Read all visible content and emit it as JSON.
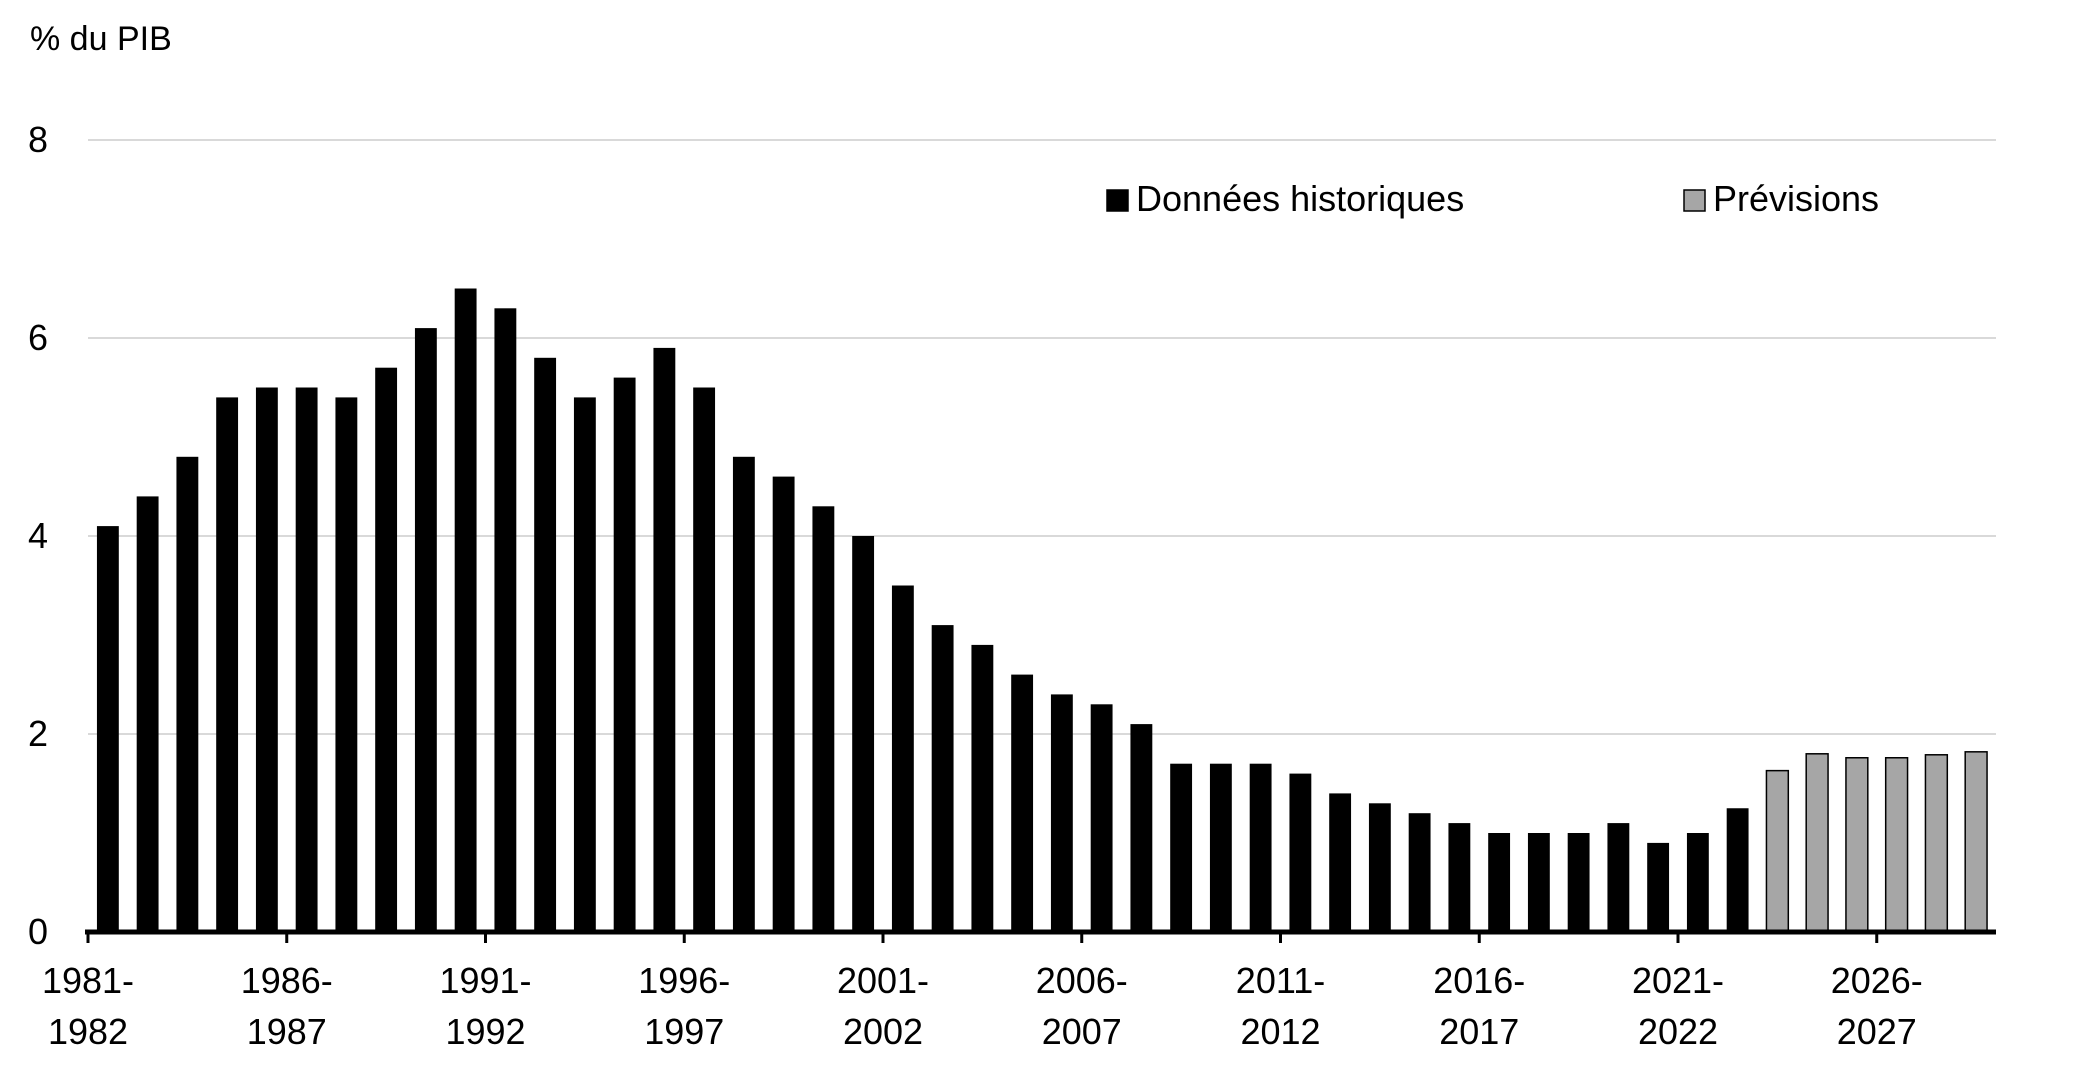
{
  "chart_data": {
    "type": "bar",
    "ylabel": "% du PIB",
    "ylim": [
      0,
      8
    ],
    "yticks": [
      "0",
      "2",
      "4",
      "6",
      "8"
    ],
    "grid": true,
    "legend_position": "top-right",
    "colors": {
      "historical": "#000000",
      "forecast": "#a6a6a6",
      "grid": "#d9d9d9"
    },
    "categories": [
      "1981-1982",
      "1982-1983",
      "1983-1984",
      "1984-1985",
      "1985-1986",
      "1986-1987",
      "1987-1988",
      "1988-1989",
      "1989-1990",
      "1990-1991",
      "1991-1992",
      "1992-1993",
      "1993-1994",
      "1994-1995",
      "1995-1996",
      "1996-1997",
      "1997-1998",
      "1998-1999",
      "1999-2000",
      "2000-2001",
      "2001-2002",
      "2002-2003",
      "2003-2004",
      "2004-2005",
      "2005-2006",
      "2006-2007",
      "2007-2008",
      "2008-2009",
      "2009-2010",
      "2010-2011",
      "2011-2012",
      "2012-2013",
      "2013-2014",
      "2014-2015",
      "2015-2016",
      "2016-2017",
      "2017-2018",
      "2018-2019",
      "2019-2020",
      "2020-2021",
      "2021-2022",
      "2022-2023",
      "2023-2024",
      "2024-2025",
      "2025-2026",
      "2026-2027",
      "2027-2028",
      "2028-2029"
    ],
    "x_tick_labels": [
      {
        "index": 0,
        "line1": "1981-",
        "line2": "1982"
      },
      {
        "index": 5,
        "line1": "1986-",
        "line2": "1987"
      },
      {
        "index": 10,
        "line1": "1991-",
        "line2": "1992"
      },
      {
        "index": 15,
        "line1": "1996-",
        "line2": "1997"
      },
      {
        "index": 20,
        "line1": "2001-",
        "line2": "2002"
      },
      {
        "index": 25,
        "line1": "2006-",
        "line2": "2007"
      },
      {
        "index": 30,
        "line1": "2011-",
        "line2": "2012"
      },
      {
        "index": 35,
        "line1": "2016-",
        "line2": "2017"
      },
      {
        "index": 40,
        "line1": "2021-",
        "line2": "2022"
      },
      {
        "index": 45,
        "line1": "2026-",
        "line2": "2027"
      }
    ],
    "series": [
      {
        "name": "Données historiques",
        "values": [
          4.1,
          4.4,
          4.8,
          5.4,
          5.5,
          5.5,
          5.4,
          5.7,
          6.1,
          6.5,
          6.3,
          5.8,
          5.4,
          5.6,
          5.9,
          5.5,
          4.8,
          4.6,
          4.3,
          4.0,
          3.5,
          3.1,
          2.9,
          2.6,
          2.4,
          2.3,
          2.1,
          1.7,
          1.7,
          1.7,
          1.6,
          1.4,
          1.3,
          1.2,
          1.1,
          1.0,
          1.0,
          1.0,
          1.1,
          0.9,
          1.0,
          1.25,
          null,
          null,
          null,
          null,
          null,
          null
        ]
      },
      {
        "name": "Prévisions",
        "values": [
          null,
          null,
          null,
          null,
          null,
          null,
          null,
          null,
          null,
          null,
          null,
          null,
          null,
          null,
          null,
          null,
          null,
          null,
          null,
          null,
          null,
          null,
          null,
          null,
          null,
          null,
          null,
          null,
          null,
          null,
          null,
          null,
          null,
          null,
          null,
          null,
          null,
          null,
          null,
          null,
          null,
          null,
          1.63,
          1.8,
          1.76,
          1.76,
          1.79,
          1.82
        ]
      }
    ]
  }
}
